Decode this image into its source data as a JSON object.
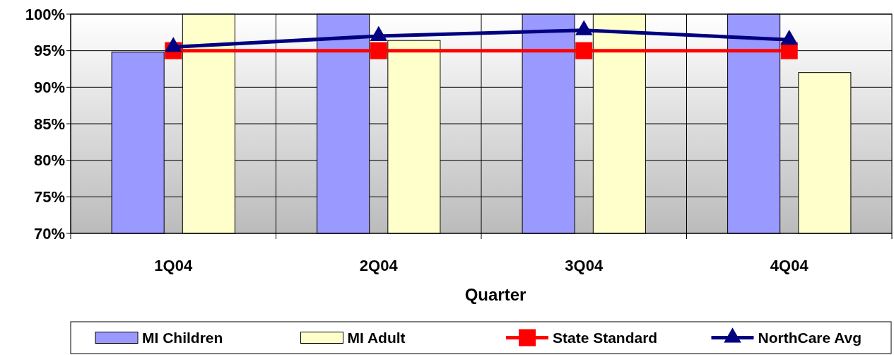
{
  "chart_data": {
    "type": "bar",
    "xlabel": "Quarter",
    "categories": [
      "1Q04",
      "2Q04",
      "3Q04",
      "4Q04"
    ],
    "series": [
      {
        "name": "MI Children",
        "color": "#9999ff",
        "values": [
          94.8,
          100,
          100,
          100
        ]
      },
      {
        "name": "MI Adult",
        "color": "#ffffcc",
        "values": [
          100,
          96.4,
          100,
          92
        ]
      },
      {
        "name": "State Standard",
        "type": "line",
        "color": "#ff0000",
        "marker": "square",
        "values": [
          95,
          95,
          95,
          95
        ]
      },
      {
        "name": "NorthCare Avg",
        "type": "line",
        "color": "#000080",
        "marker": "triangle",
        "values": [
          95.5,
          97,
          97.8,
          96.5
        ]
      }
    ],
    "ylim": [
      70,
      100
    ],
    "yticks": [
      {
        "value": 70,
        "label": "70%"
      },
      {
        "value": 75,
        "label": "75%"
      },
      {
        "value": 80,
        "label": "80%"
      },
      {
        "value": 85,
        "label": "85%"
      },
      {
        "value": 90,
        "label": "90%"
      },
      {
        "value": 95,
        "label": "95%"
      },
      {
        "value": 100,
        "label": "100%"
      }
    ],
    "grid": true,
    "legend": "bottom"
  }
}
